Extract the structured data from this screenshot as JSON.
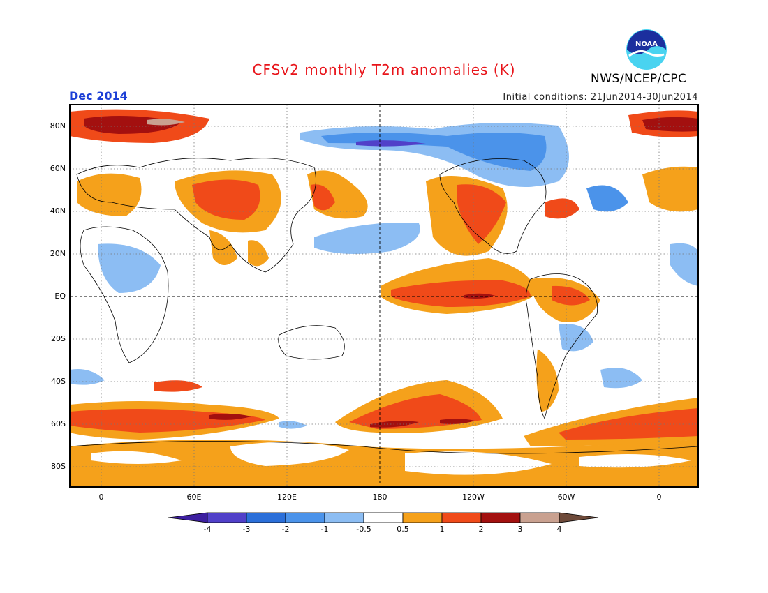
{
  "header": {
    "title": "CFSv2 monthly T2m anomalies (K)",
    "period": "Dec 2014",
    "initial_conditions": "Initial conditions: 21Jun2014-30Jun2014",
    "agency": "NWS/NCEP/CPC",
    "logo_text": "NOAA"
  },
  "map": {
    "lat_labels": [
      "80N",
      "60N",
      "40N",
      "20N",
      "EQ",
      "20S",
      "40S",
      "60S",
      "80S"
    ],
    "lon_labels": [
      "0",
      "60E",
      "120E",
      "180",
      "120W",
      "60W",
      "0"
    ]
  },
  "colorbar": {
    "labels": [
      "-4",
      "-3",
      "-2",
      "-1",
      "-0.5",
      "0.5",
      "1",
      "2",
      "3",
      "4"
    ],
    "colors": [
      "#3d1fa0",
      "#5140c9",
      "#2b6fd9",
      "#4b93ea",
      "#8cbdf3",
      "#ffffff",
      "#f5a11b",
      "#f04a19",
      "#a3100f",
      "#c9a190",
      "#6e4a3a"
    ]
  }
}
